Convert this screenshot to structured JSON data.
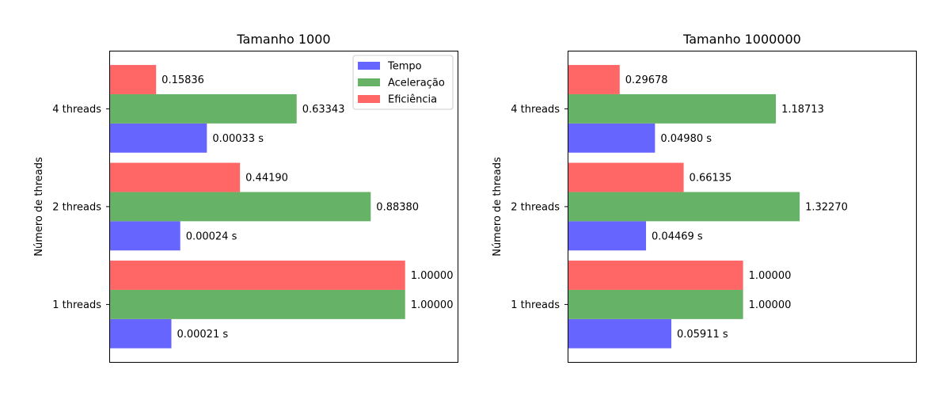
{
  "chart_data": [
    {
      "type": "bar",
      "orientation": "horizontal",
      "title": "Tamanho 1000",
      "xlabel": "",
      "ylabel": "Número de threads",
      "categories": [
        "1 threads",
        "2 threads",
        "4 threads"
      ],
      "series": [
        {
          "name": "Tempo",
          "values": [
            0.00021,
            0.00024,
            0.00033
          ],
          "labels": [
            "0.00021 s",
            "0.00024 s",
            "0.00033 s"
          ],
          "scale_factor": 1000,
          "color": "#6666ff"
        },
        {
          "name": "Aceleração",
          "values": [
            1.0,
            0.8838,
            0.63343
          ],
          "labels": [
            "1.00000",
            "0.88380",
            "0.63343"
          ],
          "color": "#66b266"
        },
        {
          "name": "Eficiência",
          "values": [
            1.0,
            0.4419,
            0.15836
          ],
          "labels": [
            "1.00000",
            "0.44190",
            "0.15836"
          ],
          "color": "#ff6666"
        }
      ],
      "xlim": [
        0,
        1.18
      ],
      "x_ticks_visible": false,
      "grid": false,
      "legend": {
        "placement": "top-right",
        "entries": [
          "Tempo",
          "Aceleração",
          "Eficiência"
        ]
      }
    },
    {
      "type": "bar",
      "orientation": "horizontal",
      "title": "Tamanho 1000000",
      "xlabel": "",
      "ylabel": "Número de threads",
      "categories": [
        "1 threads",
        "2 threads",
        "4 threads"
      ],
      "series": [
        {
          "name": "Tempo",
          "values": [
            0.05911,
            0.04469,
            0.0498
          ],
          "labels": [
            "0.05911 s",
            "0.04469 s",
            "0.04980 s"
          ],
          "scale_factor": 10,
          "color": "#6666ff"
        },
        {
          "name": "Aceleração",
          "values": [
            1.0,
            1.3227,
            1.18713
          ],
          "labels": [
            "1.00000",
            "1.32270",
            "1.18713"
          ],
          "color": "#66b266"
        },
        {
          "name": "Eficiência",
          "values": [
            1.0,
            0.66135,
            0.29678
          ],
          "labels": [
            "1.00000",
            "0.66135",
            "0.29678"
          ],
          "color": "#ff6666"
        }
      ],
      "xlim": [
        0,
        1.99
      ],
      "x_ticks_visible": false,
      "grid": false,
      "legend": null
    }
  ]
}
